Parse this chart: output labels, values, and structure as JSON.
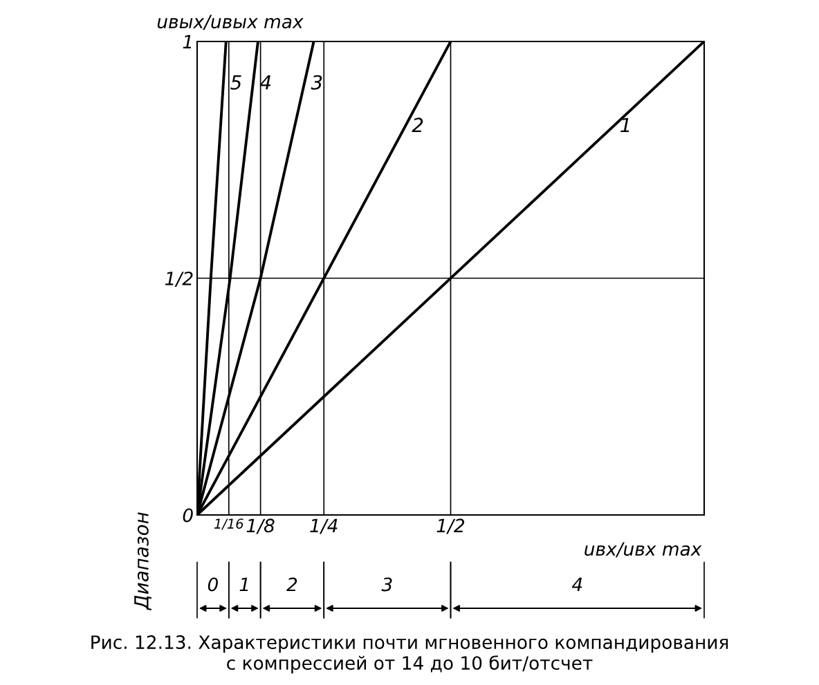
{
  "chart_data": {
    "type": "line",
    "title": "Рис. 12.13. Характеристики почти мгновенного компандирования\nс компрессией от 14 до 10 бит/отсчет",
    "xlabel": "uвх/uвх max",
    "ylabel": "uвых/uвых max",
    "xlim": [
      0,
      1
    ],
    "ylim": [
      0,
      1
    ],
    "xticks": [
      {
        "value": 0.0625,
        "label": "1/16"
      },
      {
        "value": 0.125,
        "label": "1/8"
      },
      {
        "value": 0.25,
        "label": "1/4"
      },
      {
        "value": 0.5,
        "label": "1/2"
      }
    ],
    "yticks": [
      0,
      {
        "value": 0.5,
        "label": "1/2"
      },
      1
    ],
    "grid": true,
    "line_style": "solid",
    "series": [
      {
        "name": "1",
        "color": "#000000",
        "x": [
          0,
          1
        ],
        "values": [
          0,
          1
        ]
      },
      {
        "name": "2",
        "color": "#000000",
        "x": [
          0,
          0.5
        ],
        "values": [
          0,
          1
        ]
      },
      {
        "name": "3",
        "color": "#000000",
        "x": [
          0,
          0.125,
          0.23
        ],
        "values": [
          0,
          0.5,
          1
        ]
      },
      {
        "name": "4",
        "color": "#000000",
        "x": [
          0,
          0.065,
          0.12
        ],
        "values": [
          0,
          0.5,
          1
        ]
      },
      {
        "name": "5",
        "color": "#000000",
        "x": [
          0,
          0.027,
          0.057
        ],
        "values": [
          0,
          0.5,
          1
        ]
      }
    ],
    "annotations": [
      "Диапазон",
      "0",
      "1",
      "2",
      "3",
      "4"
    ]
  }
}
